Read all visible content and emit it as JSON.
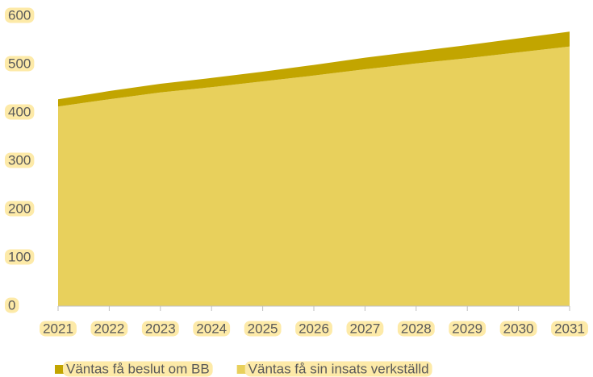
{
  "chart_data": {
    "type": "stacked_area",
    "categories": [
      "2021",
      "2022",
      "2023",
      "2024",
      "2025",
      "2026",
      "2027",
      "2028",
      "2029",
      "2030",
      "2031"
    ],
    "series": [
      {
        "name": "Väntas få beslut om BB",
        "color": "#c2a500",
        "values": [
          15,
          17,
          18,
          19,
          20,
          22,
          24,
          25,
          27,
          29,
          31
        ]
      },
      {
        "name": "Väntas få sin insats verkställd",
        "color": "#e8d05c",
        "values": [
          413,
          428,
          442,
          453,
          465,
          477,
          490,
          502,
          513,
          525,
          537
        ]
      }
    ],
    "ylim": [
      0,
      600
    ],
    "yticks": [
      0,
      100,
      200,
      300,
      400,
      500,
      600
    ],
    "label_highlight": "#fdeaa8",
    "legend": "bottom"
  }
}
